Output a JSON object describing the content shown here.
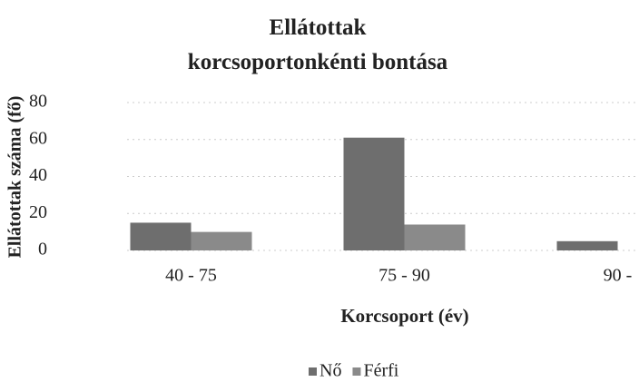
{
  "chart_data": {
    "type": "bar",
    "title": "Ellátottak korcsoportonkénti bontása",
    "x_label": "Korcsoport (év)",
    "y_label": "Ellátottak száma (fő)",
    "categories": [
      "40 - 75",
      "75 - 90",
      "90 -"
    ],
    "series": [
      {
        "name": "Nő",
        "color": "#6e6e6e",
        "values": [
          15,
          61,
          5
        ]
      },
      {
        "name": "Férfi",
        "color": "#8a8a8a",
        "values": [
          10,
          14,
          0
        ]
      }
    ],
    "ylim": [
      0,
      80
    ],
    "yticks": [
      0,
      20,
      40,
      60,
      80
    ],
    "grid": true,
    "legend": "bottom"
  }
}
